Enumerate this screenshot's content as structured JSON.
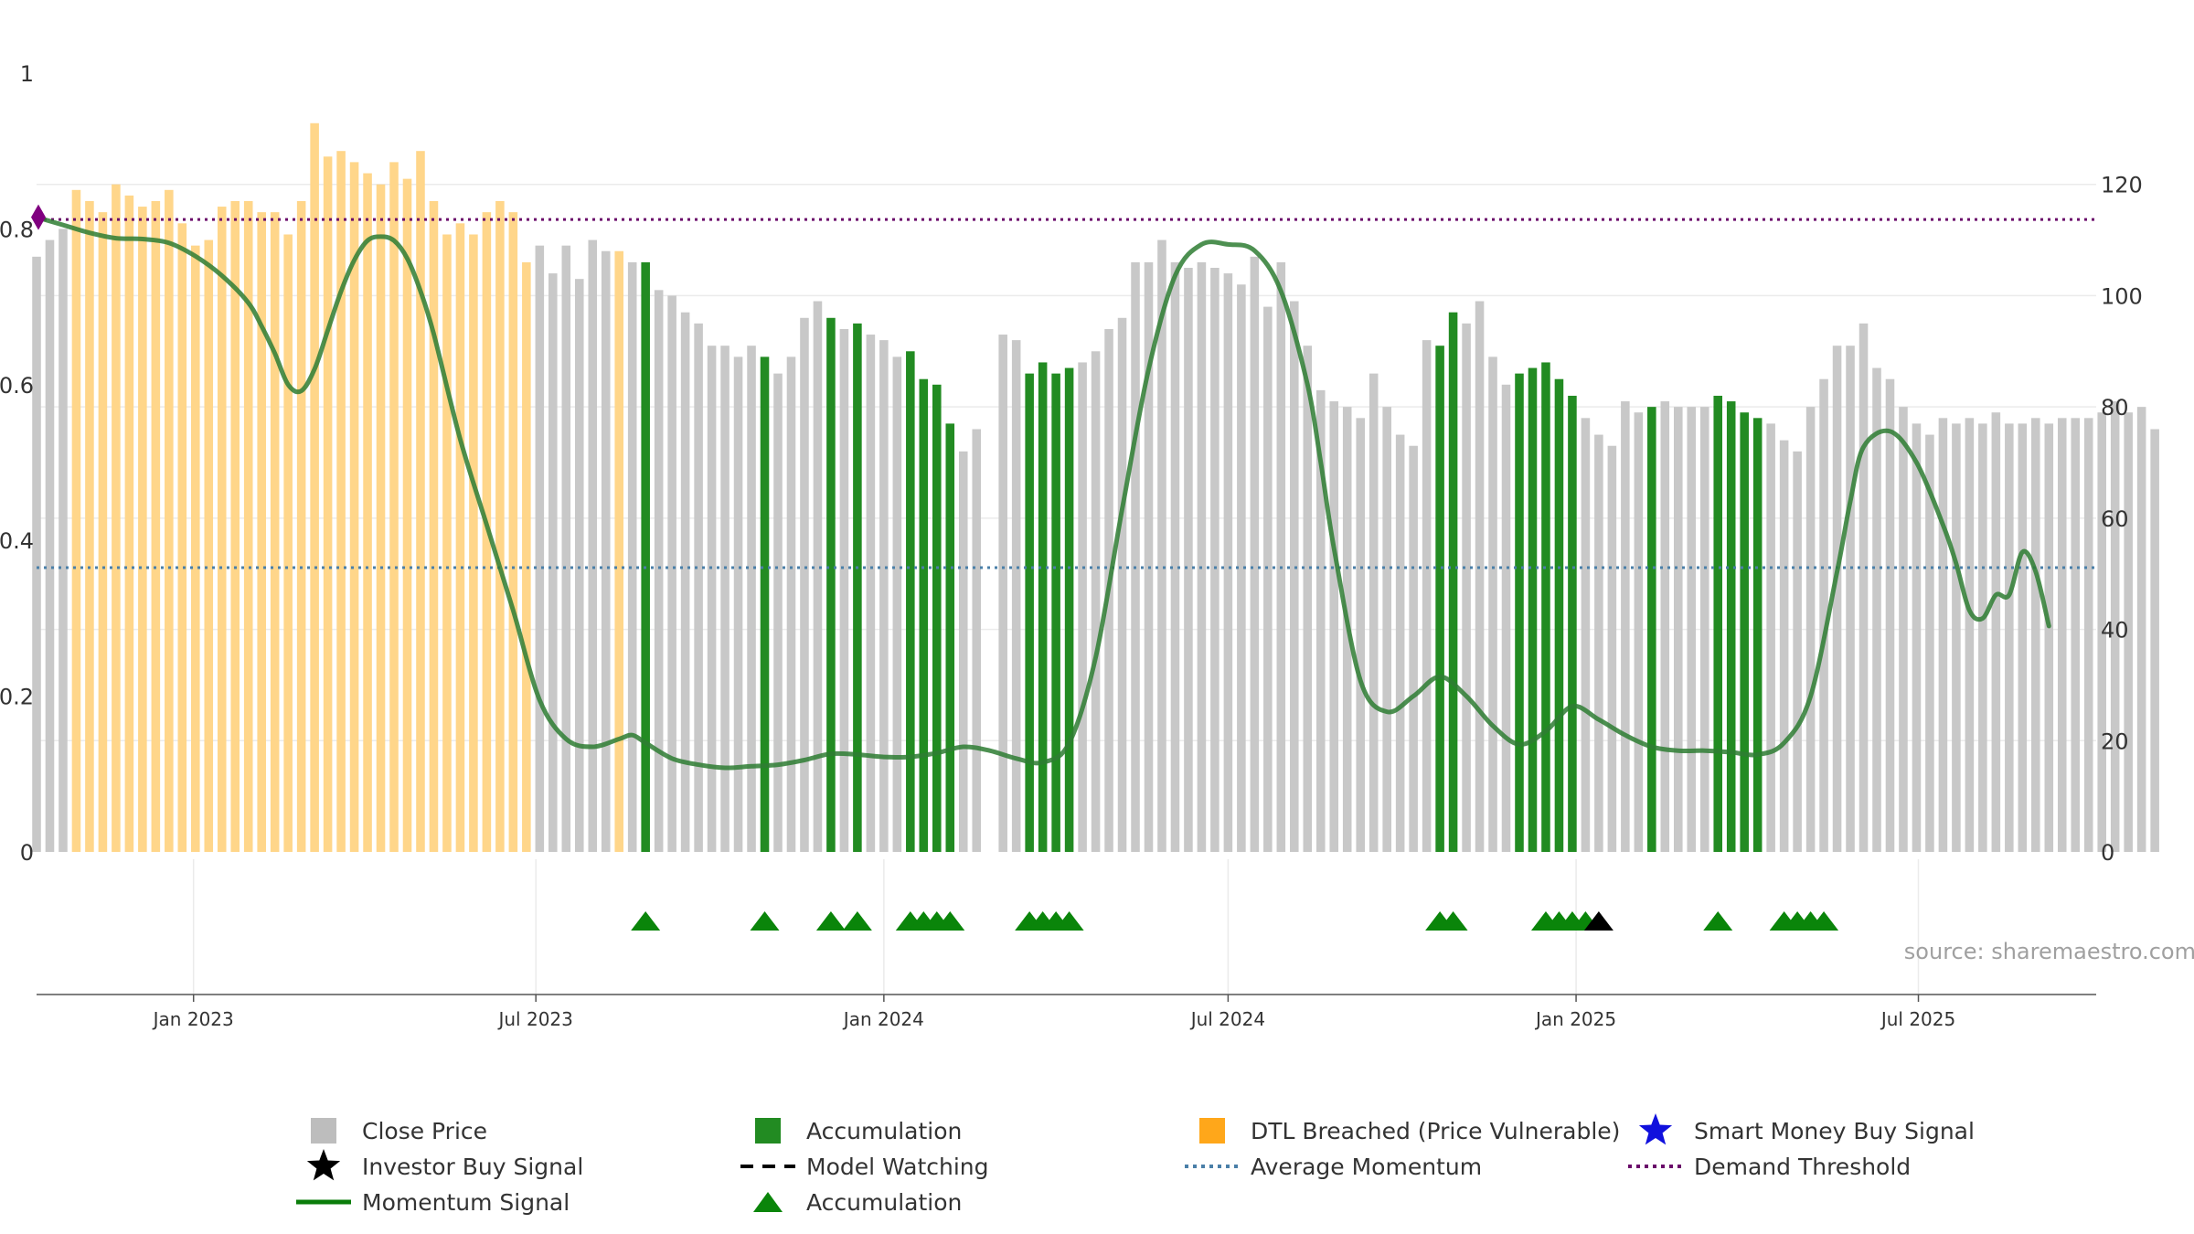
{
  "chart_data": {
    "type": "bar",
    "source_text": "source: sharemaestro.com",
    "left_axis": {
      "range": [
        0,
        1
      ],
      "ticks": [
        0,
        0.2,
        0.4,
        0.6,
        0.8,
        1
      ],
      "tick_labels": [
        "0",
        "0.2",
        "0.4",
        "0.6",
        "0.8",
        "1"
      ]
    },
    "right_axis": {
      "range": [
        0,
        140
      ],
      "ticks": [
        0,
        20,
        40,
        60,
        80,
        100,
        120
      ],
      "tick_labels": [
        "0",
        "20",
        "40",
        "60",
        "80",
        "100",
        "120"
      ]
    },
    "x_axis": {
      "range": [
        "2022-10-10",
        "2025-10-03"
      ],
      "ticks": [
        "2023-01-01",
        "2023-07-01",
        "2024-01-01",
        "2024-07-01",
        "2025-01-01",
        "2025-07-01"
      ],
      "tick_labels": [
        "Jan 2023",
        "Jul 2023",
        "Jan 2024",
        "Jul 2024",
        "Jan 2025",
        "Jul 2025"
      ]
    },
    "grid": true,
    "legend_position": "bottom",
    "colors": {
      "close": "#c8c8c8",
      "accumulation": "#228b22",
      "dtl": "#ffd68a",
      "momentum": "#2e7d32",
      "average": "#4a7fa8",
      "demand": "#6a0a6a",
      "marker": "#800080",
      "signal": "#0a850a",
      "investor": "#000000",
      "smart_money": "#1010dd"
    },
    "series": [
      {
        "name": "Close Price",
        "period_start": "2022-10-10",
        "period_days": 7,
        "values": [
          107,
          110,
          112,
          119,
          117,
          115,
          120,
          118,
          116,
          117,
          119,
          113,
          109,
          110,
          116,
          117,
          117,
          115,
          115,
          111,
          117,
          131,
          125,
          126,
          124,
          122,
          120,
          124,
          121,
          126,
          117,
          111,
          113,
          111,
          115,
          117,
          115,
          106,
          109,
          104,
          109,
          103,
          110,
          108,
          108,
          106,
          106,
          101,
          100,
          97,
          95,
          91,
          91,
          89,
          91,
          89,
          86,
          89,
          96,
          99,
          96,
          94,
          95,
          93,
          92,
          89,
          90,
          85,
          84,
          77,
          72,
          76,
          0,
          93,
          92,
          86,
          88,
          86,
          87,
          88,
          90,
          94,
          96,
          106,
          106,
          110,
          106,
          105,
          106,
          105,
          104,
          102,
          107,
          98,
          106,
          99,
          91,
          83,
          81,
          80,
          78,
          86,
          80,
          75,
          73,
          92,
          91,
          97,
          95,
          99,
          89,
          84,
          86,
          87,
          88,
          85,
          82,
          78,
          75,
          73,
          81,
          79,
          80,
          81,
          80,
          80,
          80,
          82,
          81,
          79,
          78,
          77,
          74,
          72,
          80,
          85,
          91,
          91,
          95,
          87,
          85,
          80,
          77,
          75,
          78,
          77,
          78,
          77,
          79,
          77,
          77,
          78,
          77,
          78,
          78,
          78,
          79,
          81,
          79,
          80,
          76
        ]
      },
      {
        "name": "Accumulation",
        "indices": [
          46,
          55,
          60,
          62,
          66,
          67,
          68,
          69,
          75,
          76,
          77,
          78,
          106,
          107,
          112,
          113,
          114,
          115,
          116,
          122,
          127,
          128,
          129,
          130
        ]
      },
      {
        "name": "DTL Breached (Price Vulnerable)",
        "indices": [
          3,
          4,
          5,
          6,
          7,
          8,
          9,
          10,
          11,
          12,
          13,
          14,
          15,
          16,
          17,
          18,
          19,
          20,
          21,
          22,
          23,
          24,
          25,
          26,
          27,
          28,
          29,
          30,
          31,
          32,
          33,
          34,
          35,
          36,
          37,
          44
        ]
      },
      {
        "name": "Momentum Signal",
        "x": [
          0,
          2,
          4,
          6,
          8,
          10,
          12,
          14,
          16,
          17,
          18,
          19,
          20,
          21,
          22,
          23,
          24,
          25,
          26,
          27,
          28,
          29,
          30,
          32,
          34,
          36,
          38,
          40,
          42,
          44,
          45,
          46,
          48,
          50,
          52,
          54,
          56,
          58,
          60,
          62,
          64,
          66,
          68,
          70,
          72,
          74,
          76,
          78,
          80,
          82,
          84,
          86,
          88,
          90,
          92,
          94,
          96,
          97,
          98,
          100,
          102,
          104,
          106,
          108,
          110,
          112,
          114,
          116,
          118,
          120,
          122,
          124,
          126,
          128,
          130,
          132,
          134,
          136,
          137,
          138,
          140,
          142,
          144,
          145,
          146,
          147,
          148,
          149,
          150,
          151,
          152
        ],
        "y": [
          0.815,
          0.805,
          0.795,
          0.788,
          0.787,
          0.782,
          0.765,
          0.74,
          0.705,
          0.675,
          0.64,
          0.6,
          0.592,
          0.62,
          0.67,
          0.72,
          0.76,
          0.785,
          0.79,
          0.785,
          0.762,
          0.72,
          0.665,
          0.53,
          0.42,
          0.31,
          0.195,
          0.145,
          0.135,
          0.145,
          0.15,
          0.14,
          0.12,
          0.112,
          0.108,
          0.11,
          0.112,
          0.118,
          0.126,
          0.125,
          0.122,
          0.122,
          0.127,
          0.135,
          0.13,
          0.12,
          0.115,
          0.14,
          0.25,
          0.44,
          0.62,
          0.74,
          0.78,
          0.78,
          0.772,
          0.72,
          0.6,
          0.5,
          0.39,
          0.22,
          0.18,
          0.2,
          0.225,
          0.2,
          0.162,
          0.138,
          0.155,
          0.187,
          0.17,
          0.15,
          0.135,
          0.13,
          0.13,
          0.128,
          0.125,
          0.14,
          0.2,
          0.36,
          0.45,
          0.52,
          0.54,
          0.5,
          0.42,
          0.37,
          0.31,
          0.3,
          0.33,
          0.33,
          0.385,
          0.36,
          0.29
        ]
      },
      {
        "name": "Average Momentum",
        "value": 0.365
      },
      {
        "name": "Demand Threshold",
        "value": 0.812
      },
      {
        "name": "Accumulation Signals",
        "indices": [
          46,
          55,
          60,
          62,
          66,
          67,
          68,
          69,
          75,
          76,
          77,
          78,
          106,
          107,
          114,
          115,
          116,
          117,
          127,
          132,
          133,
          134,
          135
        ]
      },
      {
        "name": "Investor Buy Signal",
        "indices": [
          118
        ]
      }
    ],
    "start_marker": {
      "index": 0,
      "value": 0.815
    },
    "legend": [
      {
        "label": "Close Price",
        "symbol": "square",
        "color_key": "close"
      },
      {
        "label": "Accumulation",
        "symbol": "square",
        "color_key": "accumulation"
      },
      {
        "label": "DTL Breached (Price Vulnerable)",
        "symbol": "square",
        "color_key": "dtl"
      },
      {
        "label": "Smart Money Buy Signal",
        "symbol": "star",
        "color_key": "smart_money"
      },
      {
        "label": "Investor Buy Signal",
        "symbol": "star",
        "color_key": "investor"
      },
      {
        "label": "Model Watching",
        "symbol": "dash",
        "color_key": "investor"
      },
      {
        "label": "Average Momentum",
        "symbol": "dot",
        "color_key": "average"
      },
      {
        "label": "Demand Threshold",
        "symbol": "dot",
        "color_key": "demand"
      },
      {
        "label": "Momentum Signal",
        "symbol": "line",
        "color_key": "momentum"
      },
      {
        "label": "Accumulation",
        "symbol": "triangle",
        "color_key": "signal"
      }
    ]
  }
}
